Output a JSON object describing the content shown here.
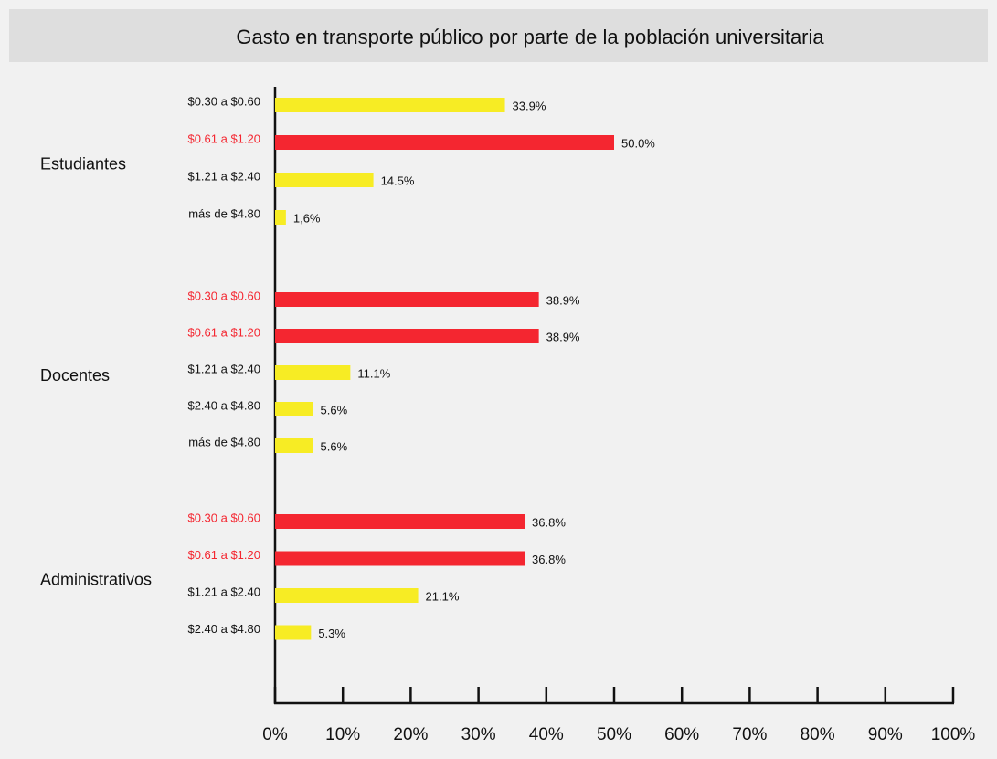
{
  "chart_data": {
    "type": "bar",
    "orientation": "horizontal",
    "title": "Gasto en transporte público por parte de la población universitaria",
    "xlim": [
      0,
      100
    ],
    "xticks": [
      {
        "value": 0,
        "label": "0%"
      },
      {
        "value": 10,
        "label": "10%"
      },
      {
        "value": 20,
        "label": "20%"
      },
      {
        "value": 30,
        "label": "30%"
      },
      {
        "value": 40,
        "label": "40%"
      },
      {
        "value": 50,
        "label": "50%"
      },
      {
        "value": 60,
        "label": "60%"
      },
      {
        "value": 70,
        "label": "70%"
      },
      {
        "value": 80,
        "label": "80%"
      },
      {
        "value": 90,
        "label": "90%"
      },
      {
        "value": 100,
        "label": "100%"
      }
    ],
    "groups": [
      {
        "name": "Estudiantes",
        "categories": [
          "$0.30 a $0.60",
          "$0.61 a $1.20",
          "$1.21 a $2.40",
          "más de $4.80"
        ],
        "values": [
          33.9,
          50.0,
          14.5,
          1.6
        ],
        "value_labels": [
          "33.9%",
          "50.0%",
          "14.5%",
          "1,6%"
        ],
        "colors": [
          "#f7ec24",
          "#f42630",
          "#f7ec24",
          "#f7ec24"
        ]
      },
      {
        "name": "Docentes",
        "categories": [
          "$0.30 a $0.60",
          "$0.61 a $1.20",
          "$1.21 a $2.40",
          "$2.40 a $4.80",
          "más de $4.80"
        ],
        "values": [
          38.9,
          38.9,
          11.1,
          5.6,
          5.6
        ],
        "value_labels": [
          "38.9%",
          "38.9%",
          "11.1%",
          "5.6%",
          "5.6%"
        ],
        "colors": [
          "#f42630",
          "#f42630",
          "#f7ec24",
          "#f7ec24",
          "#f7ec24"
        ]
      },
      {
        "name": "Administrativos",
        "categories": [
          "$0.30 a $0.60",
          "$0.61 a $1.20",
          "$1.21 a $2.40",
          "$2.40 a $4.80"
        ],
        "values": [
          36.8,
          36.8,
          21.1,
          5.3
        ],
        "value_labels": [
          "36.8%",
          "36.8%",
          "21.1%",
          "5.3%"
        ],
        "colors": [
          "#f42630",
          "#f42630",
          "#f7ec24",
          "#f7ec24"
        ]
      }
    ]
  }
}
